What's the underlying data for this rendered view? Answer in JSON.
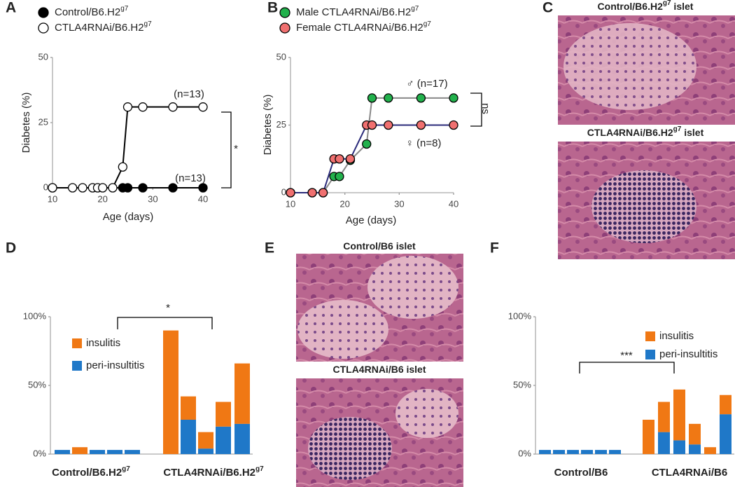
{
  "chart_data": [
    {
      "type": "line",
      "panel": "A",
      "xlabel": "Age (days)",
      "ylabel": "Diabetes (%)",
      "xlim": [
        10,
        40
      ],
      "ylim": [
        0,
        50
      ],
      "xticks": [
        10,
        20,
        30,
        40
      ],
      "yticks": [
        0,
        25,
        50
      ],
      "series": [
        {
          "name": "Control/B6.H2",
          "name_sup": "g7",
          "line_color": "#000000",
          "marker_color": "#000000",
          "x": [
            10,
            24,
            25,
            28,
            34,
            40
          ],
          "values": [
            0,
            0,
            0,
            0,
            0,
            0
          ]
        },
        {
          "name": "CTLA4RNAi/B6.H2",
          "name_sup": "g7",
          "line_color": "#000000",
          "marker_color": "#ffffff",
          "x": [
            10,
            14,
            16,
            18,
            19,
            20,
            22,
            24,
            25,
            28,
            34,
            40
          ],
          "values": [
            0,
            0,
            0,
            0,
            0,
            0,
            0,
            8,
            31,
            31,
            31,
            31
          ]
        }
      ],
      "annotations": [
        "(n=13)",
        "(n=13)",
        "*"
      ]
    },
    {
      "type": "line",
      "panel": "B",
      "xlabel": "Age (days)",
      "ylabel": "Diabetes (%)",
      "xlim": [
        10,
        40
      ],
      "ylim": [
        0,
        50
      ],
      "xticks": [
        10,
        20,
        30,
        40
      ],
      "yticks": [
        0,
        25,
        50
      ],
      "series": [
        {
          "name": "Male CTLA4RNAi/B6.H2",
          "name_sup": "g7",
          "line_color": "#888888",
          "marker_color": "#22b14c",
          "x": [
            10,
            14,
            16,
            18,
            19,
            21,
            24,
            25,
            28,
            34,
            40
          ],
          "values": [
            0,
            0,
            0,
            6,
            6,
            12,
            18,
            35,
            35,
            35,
            35
          ]
        },
        {
          "name": "Female CTLA4RNAi/B6.H2",
          "name_sup": "g7",
          "line_color": "#2a2a7a",
          "marker_color": "#f07070",
          "x": [
            10,
            14,
            16,
            18,
            19,
            21,
            24,
            25,
            28,
            34,
            40
          ],
          "values": [
            0,
            0,
            0,
            12.5,
            12.5,
            12.5,
            25,
            25,
            25,
            25,
            25
          ]
        }
      ],
      "annotations": [
        "♂ (n=17)",
        "♀ (n=8)",
        "ns"
      ]
    },
    {
      "type": "bar",
      "stacked": true,
      "panel": "D",
      "categories": [
        null,
        null,
        null,
        null,
        null,
        null,
        null,
        null,
        null,
        null
      ],
      "groups": [
        {
          "name": "Control/B6.H2",
          "sup": "g7"
        },
        {
          "name": "CTLA4RNAi/B6.H2",
          "sup": "g7"
        }
      ],
      "ylim": [
        0,
        100
      ],
      "yticks": [
        {
          "value": 0,
          "label": "0%"
        },
        {
          "value": 50,
          "label": "50%"
        },
        {
          "value": 100,
          "label": "100%"
        }
      ],
      "series": [
        {
          "name": "peri-insultitis",
          "color": "#1f78c8",
          "values": [
            3,
            0,
            3,
            3,
            3,
            0,
            25,
            4,
            20,
            22
          ]
        },
        {
          "name": "insulitis",
          "color": "#f07814",
          "values": [
            0,
            5,
            0,
            0,
            0,
            90,
            17,
            12,
            18,
            44
          ]
        }
      ],
      "annotations": [
        "*"
      ]
    },
    {
      "type": "bar",
      "stacked": true,
      "panel": "F",
      "categories": [
        null,
        null,
        null,
        null,
        null,
        null,
        null,
        null,
        null,
        null,
        null,
        null
      ],
      "groups": [
        {
          "name": "Control/B6"
        },
        {
          "name": "CTLA4RNAi/B6"
        }
      ],
      "ylim": [
        0,
        100
      ],
      "yticks": [
        {
          "value": 0,
          "label": "0%"
        },
        {
          "value": 50,
          "label": "50%"
        },
        {
          "value": 100,
          "label": "100%"
        }
      ],
      "series": [
        {
          "name": "peri-insultitis",
          "color": "#1f78c8",
          "values": [
            3,
            3,
            3,
            3,
            3,
            3,
            0,
            16,
            10,
            7,
            0,
            29
          ]
        },
        {
          "name": "insulitis",
          "color": "#f07814",
          "values": [
            0,
            0,
            0,
            0,
            0,
            0,
            25,
            22,
            37,
            15,
            5,
            14
          ]
        }
      ],
      "annotations": [
        "***"
      ]
    }
  ],
  "images": [
    {
      "panel": "C",
      "captions": [
        {
          "text": "Control/B6.H2",
          "sup": "g7",
          "tail": " islet"
        },
        {
          "text": "CTLA4RNAi/B6.H2",
          "sup": "g7",
          "tail": " islet"
        }
      ]
    },
    {
      "panel": "E",
      "captions": [
        {
          "text": "Control/B6 islet"
        },
        {
          "text": "CTLA4RNAi/B6  islet"
        }
      ]
    }
  ]
}
